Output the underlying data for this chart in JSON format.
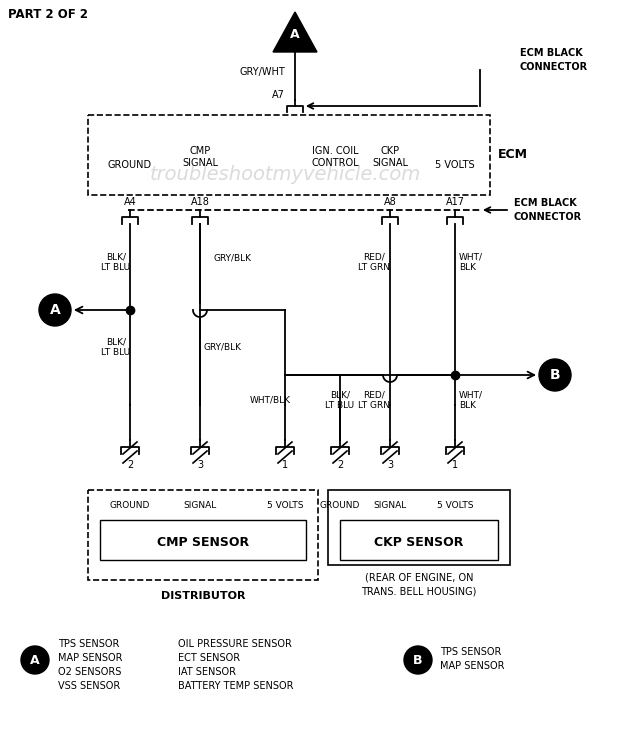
{
  "bg_color": "#ffffff",
  "fig_width": 6.18,
  "fig_height": 7.5,
  "dpi": 100,
  "title": "PART 2 OF 2",
  "watermark": "troubleshootmyvehicle.com",
  "ecm_label": "ECM",
  "pin_labels": [
    "A4",
    "A18",
    "A8",
    "A17"
  ],
  "wire_labels_upper_left": [
    "BLK/\nLT BLU",
    "GRY/BLK"
  ],
  "wire_labels_upper_right": [
    "RED/\nLT GRN",
    "WHT/\nBLK"
  ],
  "wire_labels_lower_left": [
    "BLK/\nLT BLU",
    "GRY/BLK"
  ],
  "wire_labels_lower_right": [
    "BLK/\nLT BLU",
    "RED/\nLT GRN",
    "WHT/\nBLK"
  ],
  "whd_label": "WHT/BLK",
  "cmp_pins": [
    "2",
    "3",
    "1"
  ],
  "ckp_pins": [
    "2",
    "3",
    "1"
  ],
  "cmp_sensor_label": "CMP SENSOR",
  "ckp_sensor_label": "CKP SENSOR",
  "distributor_label": "DISTRIBUTOR",
  "ckp_note": "(REAR OF ENGINE, ON\nTRANS. BELL HOUSING)",
  "ecm_connector_label": "ECM BLACK\nCONNECTOR",
  "top_connector_label": "ECM BLACK\nCONNECTOR",
  "grywht": "GRY/WHT",
  "a7": "A7",
  "ign_coil": "IGN. COIL\nCONTROL",
  "ground_label": "GROUND",
  "cmp_signal_label": "CMP\nSIGNAL",
  "ckp_signal_label": "CKP\nSIGNAL",
  "volts_label": "5 VOLTS",
  "signal_label": "SIGNAL",
  "legend_a_left": [
    "TPS SENSOR",
    "MAP SENSOR",
    "O2 SENSORS",
    "VSS SENSOR"
  ],
  "legend_a_right": [
    "OIL PRESSURE SENSOR",
    "ECT SENSOR",
    "IAT SENSOR",
    "BATTERY TEMP SENSOR"
  ],
  "legend_b": [
    "TPS SENSOR",
    "MAP SENSOR"
  ]
}
